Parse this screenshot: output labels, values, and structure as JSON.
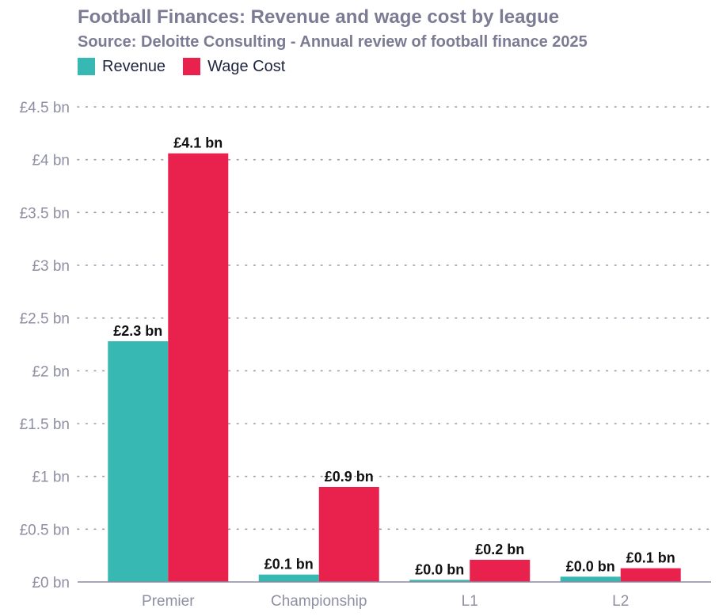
{
  "chart_data": {
    "type": "bar",
    "title": "Football Finances: Revenue and wage cost by league",
    "subtitle": "Source: Deloitte Consulting - Annual review of football finance 2025",
    "categories": [
      "Premier",
      "Championship",
      "L1",
      "L2"
    ],
    "series": [
      {
        "name": "Revenue",
        "color": "#38b8b2",
        "values": [
          2.28,
          0.07,
          0.02,
          0.05
        ],
        "labels": [
          "£2.3 bn",
          "£0.1 bn",
          "£0.0 bn",
          "£0.0 bn"
        ]
      },
      {
        "name": "Wage Cost",
        "color": "#e8224d",
        "values": [
          4.06,
          0.9,
          0.21,
          0.13
        ],
        "labels": [
          "£4.1 bn",
          "£0.9 bn",
          "£0.2 bn",
          "£0.1 bn"
        ]
      }
    ],
    "ylim": [
      0,
      4.5
    ],
    "yticks": [
      0,
      0.5,
      1,
      1.5,
      2,
      2.5,
      3,
      3.5,
      4,
      4.5
    ],
    "ytick_labels": [
      "£0 bn",
      "£0.5 bn",
      "£1 bn",
      "£1.5 bn",
      "£2 bn",
      "£2.5 bn",
      "£3 bn",
      "£3.5 bn",
      "£4 bn",
      "£4.5 bn"
    ],
    "grid": true,
    "legend_position": "top-left"
  }
}
